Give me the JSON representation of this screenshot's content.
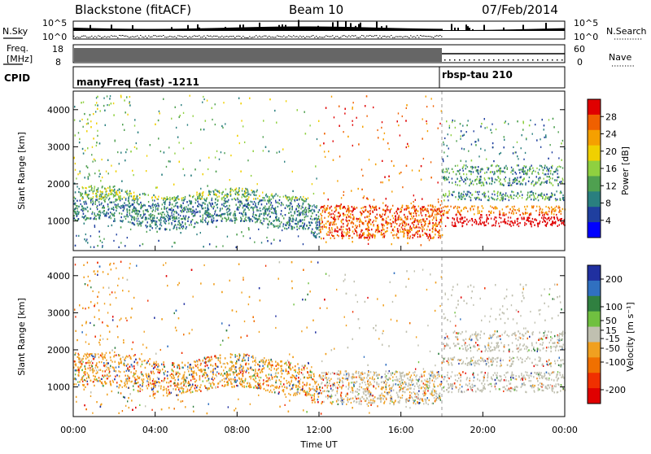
{
  "header": {
    "title": "Blackstone (fitACF)",
    "beam": "Beam 10",
    "date": "07/Feb/2014"
  },
  "nsky_panel": {
    "left_label": "N.Sky",
    "right_label": "N.Search",
    "left_ticks": [
      "10^5",
      "10^0"
    ],
    "right_ticks": [
      "10^5",
      "10^0"
    ]
  },
  "freq_panel": {
    "label_line1": "Freq.",
    "label_line2": "[MHz]",
    "right_label": "Nave",
    "left_ticks": [
      "18",
      "8"
    ],
    "right_ticks": [
      "60",
      "0"
    ]
  },
  "cpid_panel": {
    "label": "CPID",
    "program_1": "manyFreq (fast) -1211",
    "program_2": "rbsp-tau 210"
  },
  "chart_data": [
    {
      "type": "heatmap",
      "name": "power",
      "ylabel": "Slant Range [km]",
      "y_ticks": [
        "1000",
        "2000",
        "3000",
        "4000"
      ],
      "ylim": [
        200,
        4500
      ],
      "colorbar": {
        "label": "Power [dB]",
        "ticks": [
          "4",
          "8",
          "12",
          "16",
          "20",
          "24",
          "28"
        ],
        "range": [
          0,
          32
        ],
        "colors": [
          "#0000ff",
          "#1f3f9f",
          "#2a7f7f",
          "#4fa050",
          "#8fd040",
          "#f0d000",
          "#f5a000",
          "#f06000",
          "#e00000"
        ]
      }
    },
    {
      "type": "heatmap",
      "name": "velocity",
      "ylabel": "Slant Range [km]",
      "y_ticks": [
        "1000",
        "2000",
        "3000",
        "4000"
      ],
      "ylim": [
        200,
        4500
      ],
      "colorbar": {
        "label": "Velocity [m s⁻¹]",
        "ticks": [
          "200",
          "100",
          "50",
          "15",
          "-15",
          "-50",
          "-100",
          "-200"
        ],
        "range": [
          -250,
          250
        ],
        "colors": [
          "#2030a0",
          "#3070c0",
          "#308040",
          "#70c040",
          "#c0c0b0",
          "#f0a020",
          "#f07000",
          "#f03000",
          "#e00000"
        ]
      }
    }
  ],
  "x_axis": {
    "label": "Time UT",
    "ticks": [
      "00:00",
      "04:00",
      "08:00",
      "12:00",
      "16:00",
      "20:00",
      "00:00"
    ],
    "range_hours": [
      0,
      24
    ],
    "program_switch_hour": 18
  }
}
